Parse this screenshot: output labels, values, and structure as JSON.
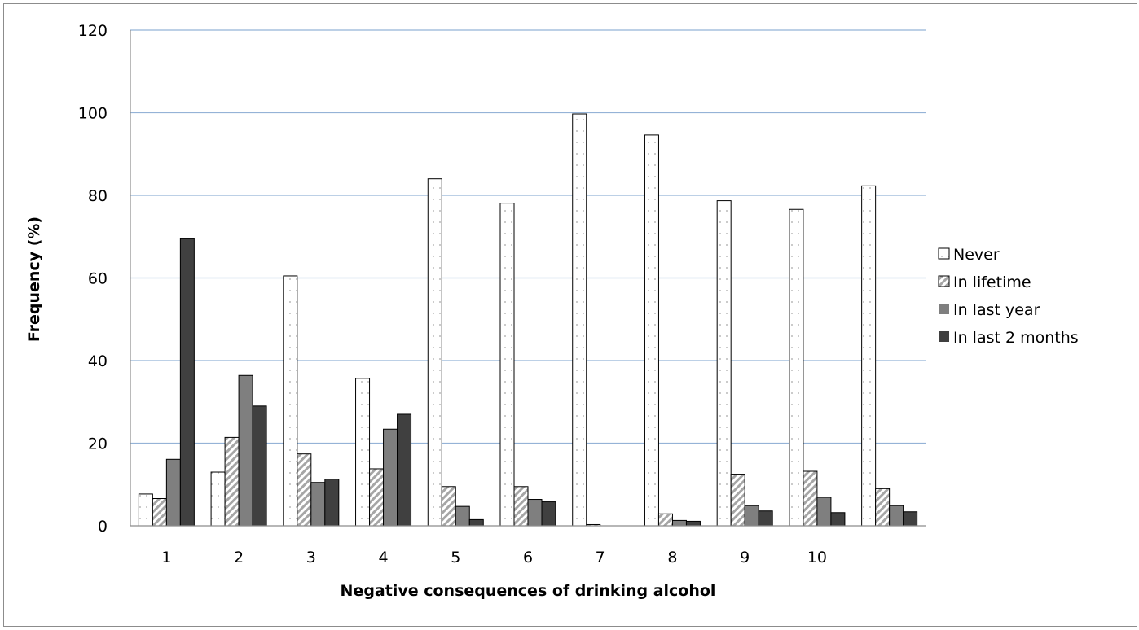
{
  "chart_data": {
    "type": "bar",
    "xlabel": "Negative consequences of drinking alcohol",
    "ylabel": "Frequency (%)",
    "ylim": [
      0,
      120
    ],
    "y_ticks": [
      "0",
      "20",
      "40",
      "60",
      "80",
      "100",
      "120"
    ],
    "categories": [
      "1",
      "2",
      "3",
      "4",
      "5",
      "6",
      "7",
      "8",
      "9",
      "10",
      ""
    ],
    "grid": true,
    "legend_position": "right",
    "series": [
      {
        "name": "Never",
        "pattern": "dotted-white",
        "color": "#ffffff",
        "values": [
          7.7,
          13.0,
          60.5,
          35.7,
          84.0,
          78.1,
          99.7,
          94.6,
          78.7,
          76.6,
          82.3
        ]
      },
      {
        "name": "In lifetime",
        "pattern": "hatched",
        "color": "#bfbfbf",
        "values": [
          6.6,
          21.4,
          17.4,
          13.8,
          9.5,
          9.5,
          0.3,
          2.9,
          12.5,
          13.2,
          9.0
        ]
      },
      {
        "name": "In last year",
        "pattern": "solid",
        "color": "#7f7f7f",
        "values": [
          16.1,
          36.4,
          10.5,
          23.4,
          4.7,
          6.4,
          0,
          1.3,
          4.9,
          6.9,
          4.9
        ]
      },
      {
        "name": "In last 2 months",
        "pattern": "solid",
        "color": "#404040",
        "values": [
          69.5,
          29.0,
          11.3,
          27.0,
          1.5,
          5.8,
          0,
          1.1,
          3.6,
          3.2,
          3.4
        ]
      }
    ]
  }
}
